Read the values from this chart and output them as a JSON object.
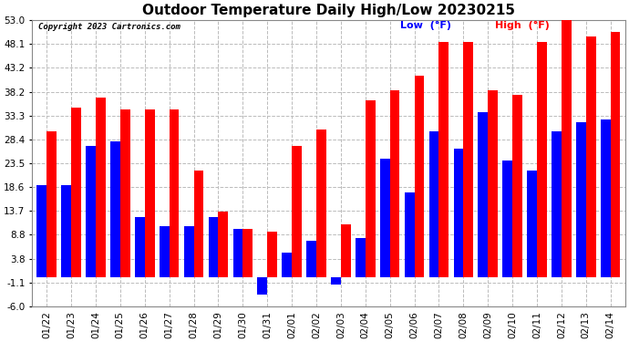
{
  "title": "Outdoor Temperature Daily High/Low 20230215",
  "copyright": "Copyright 2023 Cartronics.com",
  "dates": [
    "01/22",
    "01/23",
    "01/24",
    "01/25",
    "01/26",
    "01/27",
    "01/28",
    "01/29",
    "01/30",
    "01/31",
    "02/01",
    "02/02",
    "02/03",
    "02/04",
    "02/05",
    "02/06",
    "02/07",
    "02/08",
    "02/09",
    "02/10",
    "02/11",
    "02/12",
    "02/13",
    "02/14"
  ],
  "highs": [
    30.0,
    35.0,
    37.0,
    34.5,
    34.5,
    34.5,
    22.0,
    13.5,
    10.0,
    9.5,
    27.0,
    30.5,
    11.0,
    36.5,
    38.5,
    41.5,
    48.5,
    48.5,
    38.5,
    37.5,
    48.5,
    53.0,
    49.5,
    50.5
  ],
  "lows": [
    19.0,
    19.0,
    27.0,
    28.0,
    12.5,
    10.5,
    10.5,
    12.5,
    10.0,
    -3.5,
    5.0,
    7.5,
    -1.5,
    8.0,
    24.5,
    17.5,
    30.0,
    26.5,
    34.0,
    24.0,
    22.0,
    30.0,
    32.0,
    32.5
  ],
  "ylim": [
    -6.0,
    53.0
  ],
  "yticks": [
    -6.0,
    -1.1,
    3.8,
    8.8,
    13.7,
    18.6,
    23.5,
    28.4,
    33.3,
    38.2,
    43.2,
    48.1,
    53.0
  ],
  "high_color": "#ff0000",
  "low_color": "#0000ff",
  "bg_color": "#ffffff",
  "grid_color": "#bbbbbb",
  "title_fontsize": 11,
  "bar_width": 0.4,
  "legend_low_label": "Low",
  "legend_high_label": "High",
  "legend_unit": "(°F)"
}
